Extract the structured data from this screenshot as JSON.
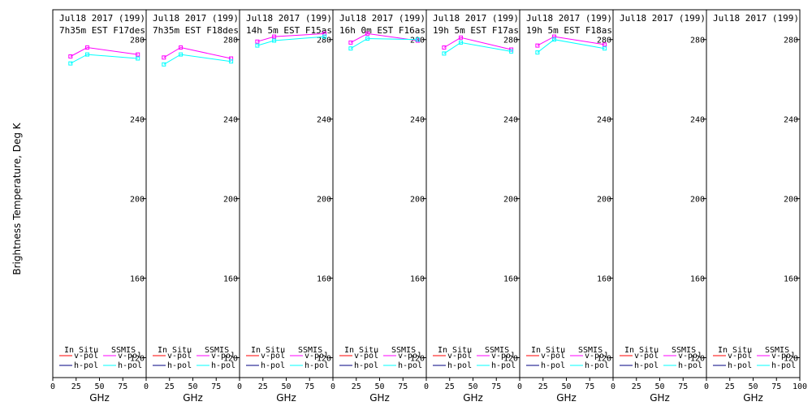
{
  "y_axis_label": "Brightness Temperature, Deg K",
  "x_axis_label": "GHz",
  "legend": {
    "in_situ_label": "In Situ",
    "ssmis_label": "SSMIS",
    "vpol_label": "v-pol",
    "hpol_label": "h-pol",
    "colors": {
      "in_situ_vpol": "#ff0000",
      "in_situ_hpol": "#000080",
      "ssmis_vpol": "#ff00ff",
      "ssmis_hpol": "#00ffff"
    }
  },
  "chart_data": [
    {
      "type": "line",
      "title": "Jul18 2017 (199)",
      "subtitle": "7h35m EST F17des",
      "xlim": [
        0,
        100
      ],
      "ylim": [
        110,
        295
      ],
      "xticks": [
        0,
        25,
        50,
        75
      ],
      "yticks": [
        120,
        160,
        200,
        240,
        280
      ],
      "series": [
        {
          "name": "SSMIS v-pol",
          "x": [
            19,
            37,
            91
          ],
          "y": [
            271.5,
            276,
            272.5
          ]
        },
        {
          "name": "SSMIS h-pol",
          "x": [
            19,
            37,
            91
          ],
          "y": [
            268,
            272.5,
            270.5
          ]
        }
      ]
    },
    {
      "type": "line",
      "title": "Jul18 2017 (199)",
      "subtitle": "7h35m EST F18des",
      "xlim": [
        0,
        100
      ],
      "ylim": [
        110,
        295
      ],
      "xticks": [
        0,
        25,
        50,
        75
      ],
      "yticks": [
        120,
        160,
        200,
        240,
        280
      ],
      "series": [
        {
          "name": "SSMIS v-pol",
          "x": [
            19,
            37,
            91
          ],
          "y": [
            271,
            276,
            270.5
          ]
        },
        {
          "name": "SSMIS h-pol",
          "x": [
            19,
            37,
            91
          ],
          "y": [
            267.5,
            272.5,
            269
          ]
        }
      ]
    },
    {
      "type": "line",
      "title": "Jul18 2017 (199)",
      "subtitle": "14h 5m EST F15asc",
      "xlim": [
        0,
        100
      ],
      "ylim": [
        110,
        295
      ],
      "xticks": [
        0,
        25,
        50,
        75
      ],
      "yticks": [
        120,
        160,
        200,
        240,
        280
      ],
      "series": [
        {
          "name": "SSMIS v-pol",
          "x": [
            19,
            37,
            91
          ],
          "y": [
            279,
            281.5,
            283
          ]
        },
        {
          "name": "SSMIS h-pol",
          "x": [
            19,
            37,
            91
          ],
          "y": [
            277,
            279.5,
            281.5
          ]
        }
      ]
    },
    {
      "type": "line",
      "title": "Jul18 2017 (199)",
      "subtitle": "16h 0m EST F16asc",
      "xlim": [
        0,
        100
      ],
      "ylim": [
        110,
        295
      ],
      "xticks": [
        0,
        25,
        50,
        75
      ],
      "yticks": [
        120,
        160,
        200,
        240,
        280
      ],
      "series": [
        {
          "name": "SSMIS v-pol",
          "x": [
            19,
            37,
            91
          ],
          "y": [
            278.5,
            283,
            279.5
          ]
        },
        {
          "name": "SSMIS h-pol",
          "x": [
            19,
            37,
            91
          ],
          "y": [
            275.5,
            280.5,
            280
          ]
        }
      ]
    },
    {
      "type": "line",
      "title": "Jul18 2017 (199)",
      "subtitle": "19h 5m EST F17asc",
      "xlim": [
        0,
        100
      ],
      "ylim": [
        110,
        295
      ],
      "xticks": [
        0,
        25,
        50,
        75
      ],
      "yticks": [
        120,
        160,
        200,
        240,
        280
      ],
      "series": [
        {
          "name": "SSMIS v-pol",
          "x": [
            19,
            37,
            91
          ],
          "y": [
            276,
            281,
            275
          ]
        },
        {
          "name": "SSMIS h-pol",
          "x": [
            19,
            37,
            91
          ],
          "y": [
            273,
            278.5,
            274
          ]
        }
      ]
    },
    {
      "type": "line",
      "title": "Jul18 2017 (199)",
      "subtitle": "19h 5m EST F18asc",
      "xlim": [
        0,
        100
      ],
      "ylim": [
        110,
        295
      ],
      "xticks": [
        0,
        25,
        50,
        75
      ],
      "yticks": [
        120,
        160,
        200,
        240,
        280
      ],
      "series": [
        {
          "name": "SSMIS v-pol",
          "x": [
            19,
            37,
            91
          ],
          "y": [
            277,
            281.5,
            277.5
          ]
        },
        {
          "name": "SSMIS h-pol",
          "x": [
            19,
            37,
            91
          ],
          "y": [
            273.5,
            280,
            275.5
          ]
        }
      ]
    },
    {
      "type": "line",
      "title": "Jul18 2017 (199)",
      "subtitle": "",
      "xlim": [
        0,
        100
      ],
      "ylim": [
        110,
        295
      ],
      "xticks": [
        0,
        25,
        50,
        75
      ],
      "yticks": [
        120,
        160,
        200,
        240,
        280
      ],
      "series": []
    },
    {
      "type": "line",
      "title": "Jul18 2017 (199)",
      "subtitle": "",
      "xlim": [
        0,
        100
      ],
      "ylim": [
        110,
        295
      ],
      "xticks": [
        0,
        25,
        50,
        75,
        100
      ],
      "yticks": [
        120,
        160,
        200,
        240,
        280
      ],
      "series": []
    }
  ]
}
